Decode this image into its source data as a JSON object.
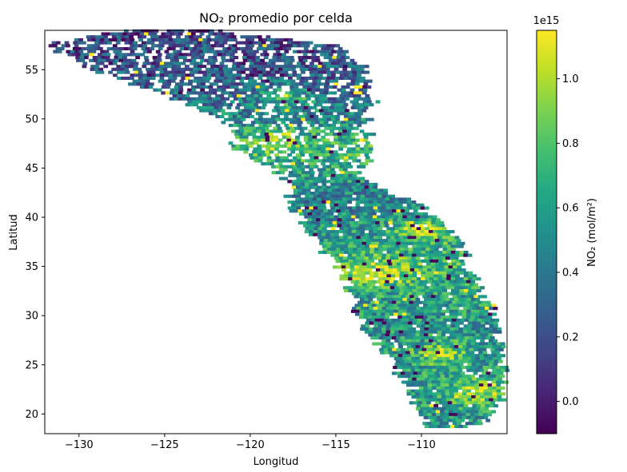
{
  "chart_data": {
    "type": "heatmap",
    "title": "NO₂ promedio por celda",
    "xlabel": "Longitud",
    "ylabel": "Latitud",
    "xlim": [
      -132.0,
      -105.0
    ],
    "ylim": [
      18.0,
      59.0
    ],
    "xticks": [
      -130,
      -125,
      -120,
      -115,
      -110
    ],
    "xtick_labels": [
      "−130",
      "−125",
      "−120",
      "−115",
      "−110"
    ],
    "yticks": [
      20,
      25,
      30,
      35,
      40,
      45,
      50,
      55
    ],
    "ytick_labels": [
      "20",
      "25",
      "30",
      "35",
      "40",
      "45",
      "50",
      "55"
    ],
    "colorbar": {
      "label": "NO₂ (mol/m²)",
      "offset_text": "1e15",
      "colormap": "viridis",
      "range": [
        -0.1,
        1.15
      ],
      "ticks": [
        0.0,
        0.2,
        0.4,
        0.6,
        0.8,
        1.0
      ],
      "tick_labels": [
        "0.0",
        "0.2",
        "0.4",
        "0.6",
        "0.8",
        "1.0"
      ]
    },
    "grid": false,
    "cell_size_deg": [
      0.25,
      0.3
    ],
    "swath_rows": [
      {
        "lat": 58.8,
        "lon_min": -127.5,
        "lon_max": -122.0,
        "mean": 0.1
      },
      {
        "lat": 57.5,
        "lon_min": -132.0,
        "lon_max": -115.5,
        "mean": 0.2
      },
      {
        "lat": 55.0,
        "lon_min": -129.5,
        "lon_max": -113.0,
        "mean": 0.25
      },
      {
        "lat": 52.0,
        "lon_min": -124.5,
        "lon_max": -113.0,
        "mean": 0.35
      },
      {
        "lat": 49.0,
        "lon_min": -121.0,
        "lon_max": -113.5,
        "mean": 0.55
      },
      {
        "lat": 47.0,
        "lon_min": -121.0,
        "lon_max": -112.5,
        "mean": 0.75
      },
      {
        "lat": 44.0,
        "lon_min": -118.0,
        "lon_max": -114.0,
        "mean": 0.55
      },
      {
        "lat": 41.0,
        "lon_min": -117.5,
        "lon_max": -110.0,
        "mean": 0.45
      },
      {
        "lat": 38.0,
        "lon_min": -116.5,
        "lon_max": -108.0,
        "mean": 0.6
      },
      {
        "lat": 35.0,
        "lon_min": -115.0,
        "lon_max": -107.5,
        "mean": 0.75
      },
      {
        "lat": 32.0,
        "lon_min": -114.0,
        "lon_max": -106.5,
        "mean": 0.6
      },
      {
        "lat": 29.0,
        "lon_min": -113.5,
        "lon_max": -105.5,
        "mean": 0.55
      },
      {
        "lat": 26.0,
        "lon_min": -112.0,
        "lon_max": -105.5,
        "mean": 0.55
      },
      {
        "lat": 23.0,
        "lon_min": -111.0,
        "lon_max": -105.0,
        "mean": 0.6
      },
      {
        "lat": 20.0,
        "lon_min": -110.0,
        "lon_max": -106.0,
        "mean": 0.55
      },
      {
        "lat": 18.5,
        "lon_min": -109.5,
        "lon_max": -107.0,
        "mean": 0.5
      }
    ],
    "hotspots": [
      {
        "lon": -112.5,
        "lat": 34.2,
        "value": 1.12
      },
      {
        "lon": -110.0,
        "lat": 38.5,
        "value": 1.05
      },
      {
        "lon": -118.5,
        "lat": 47.5,
        "value": 0.95
      },
      {
        "lon": -118.0,
        "lat": 52.0,
        "value": 0.75
      },
      {
        "lon": -109.0,
        "lat": 26.0,
        "value": 0.95
      },
      {
        "lon": -107.0,
        "lat": 22.0,
        "value": 1.0
      }
    ]
  }
}
